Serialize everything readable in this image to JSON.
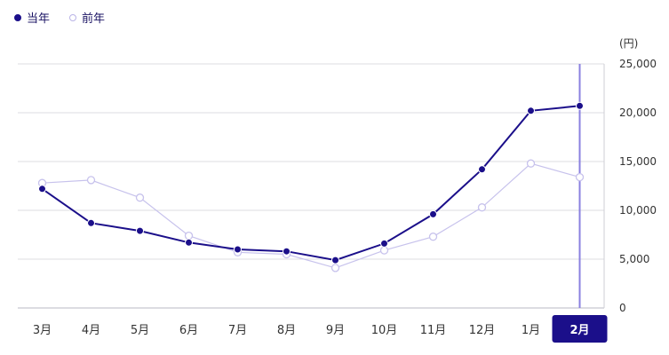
{
  "legend": {
    "current_label": "当年",
    "previous_label": "前年"
  },
  "chart_data": {
    "type": "line",
    "ylabel": "(円)",
    "ylim": [
      0,
      25000
    ],
    "yticks": [
      "0",
      "5,000",
      "10,000",
      "15,000",
      "20,000",
      "25,000"
    ],
    "ytick_values": [
      0,
      5000,
      10000,
      15000,
      20000,
      25000
    ],
    "categories": [
      "3月",
      "4月",
      "5月",
      "6月",
      "7月",
      "8月",
      "9月",
      "10月",
      "11月",
      "12月",
      "1月",
      "2月"
    ],
    "selected_category": "2月",
    "grid": true,
    "series": [
      {
        "name": "当年",
        "color": "#1b0f8a",
        "marker": "filled",
        "values": [
          12200,
          8700,
          7900,
          6700,
          6000,
          5800,
          4900,
          6600,
          9600,
          14200,
          20200,
          20700
        ]
      },
      {
        "name": "前年",
        "color": "#c7c2ec",
        "marker": "hollow",
        "values": [
          12800,
          13100,
          11300,
          7400,
          5700,
          5500,
          4100,
          5900,
          7300,
          10300,
          14800,
          13400
        ]
      }
    ],
    "colors": {
      "highlight_line": "#8a80e0",
      "selected_label_bg": "#1b0f8a"
    }
  }
}
